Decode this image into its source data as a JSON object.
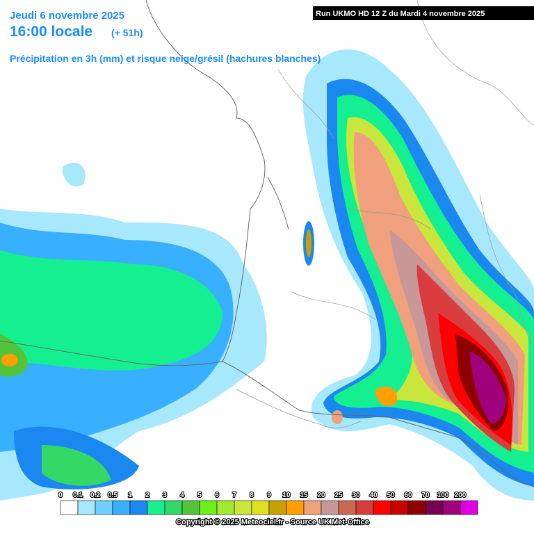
{
  "header": {
    "date": "Jeudi 6 novembre 2025",
    "time": "16:00 locale",
    "lead": "(+ 51h)",
    "subtitle": "Précipitation en 3h (mm) et risque neige/grésil (hachures blanches)",
    "run": "Run UKMO HD 12 Z du Mardi 4 novembre 2025"
  },
  "legend": [
    {
      "label": "0",
      "color": "#ffffff"
    },
    {
      "label": "0.1",
      "color": "#a8e8fc"
    },
    {
      "label": "0.2",
      "color": "#70d0ff"
    },
    {
      "label": "0.5",
      "color": "#38b0ff"
    },
    {
      "label": "1",
      "color": "#1a88f0"
    },
    {
      "label": "2",
      "color": "#14f090"
    },
    {
      "label": "3",
      "color": "#34d866"
    },
    {
      "label": "4",
      "color": "#52c43c"
    },
    {
      "label": "5",
      "color": "#6cf018"
    },
    {
      "label": "6",
      "color": "#a4e830"
    },
    {
      "label": "7",
      "color": "#c8e63c"
    },
    {
      "label": "8",
      "color": "#e0e020"
    },
    {
      "label": "9",
      "color": "#c8a000"
    },
    {
      "label": "10",
      "color": "#ffa000"
    },
    {
      "label": "15",
      "color": "#f0a07c"
    },
    {
      "label": "20",
      "color": "#c89898"
    },
    {
      "label": "25",
      "color": "#c86a50"
    },
    {
      "label": "30",
      "color": "#d83c3c"
    },
    {
      "label": "40",
      "color": "#ff0000"
    },
    {
      "label": "50",
      "color": "#c80000"
    },
    {
      "label": "60",
      "color": "#8c0000"
    },
    {
      "label": "70",
      "color": "#780050"
    },
    {
      "label": "100",
      "color": "#a0007c"
    },
    {
      "label": "200",
      "color": "#e000e0"
    }
  ],
  "footer": {
    "copyright": "Copyright © 2025 Meteociel.fr - Source UK Met-Office"
  }
}
